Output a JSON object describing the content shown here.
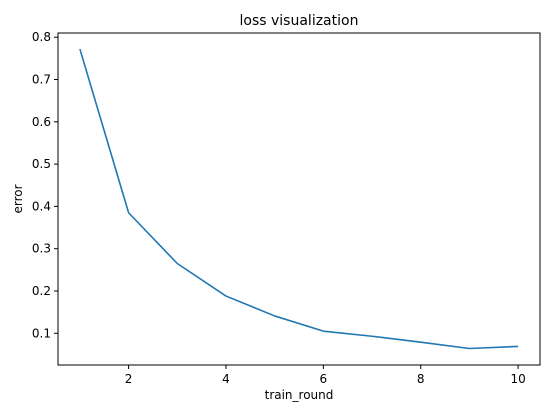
{
  "chart_data": {
    "type": "line",
    "title": "loss visualization",
    "xlabel": "train_round",
    "ylabel": "error",
    "xlim": [
      0.55,
      10.45
    ],
    "ylim": [
      0.025,
      0.81
    ],
    "xticks": [
      2,
      4,
      6,
      8,
      10
    ],
    "xtick_labels": [
      "2",
      "4",
      "6",
      "8",
      "10"
    ],
    "yticks": [
      0.1,
      0.2,
      0.3,
      0.4,
      0.5,
      0.6,
      0.7,
      0.8
    ],
    "ytick_labels": [
      "0.1",
      "0.2",
      "0.3",
      "0.4",
      "0.5",
      "0.6",
      "0.7",
      "0.8"
    ],
    "grid": false,
    "series": [
      {
        "color": "#1f77b4",
        "x": [
          1,
          2,
          3,
          4,
          5,
          6,
          7,
          8,
          9,
          10
        ],
        "y": [
          0.772,
          0.385,
          0.265,
          0.188,
          0.141,
          0.105,
          0.093,
          0.079,
          0.064,
          0.069
        ]
      }
    ]
  }
}
